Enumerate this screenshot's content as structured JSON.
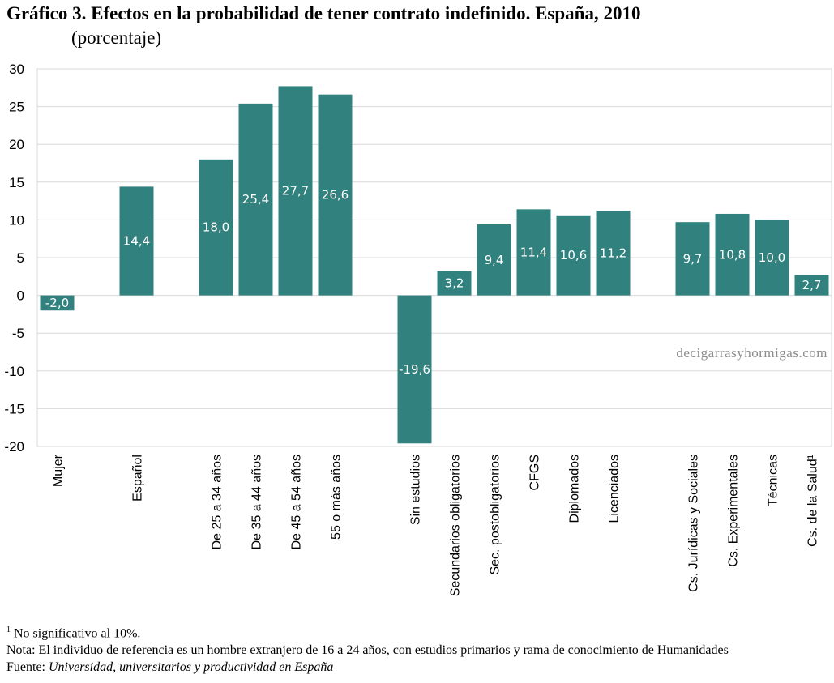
{
  "chart_data": {
    "type": "bar",
    "title": "Gráfico 3. Efectos en la probabilidad de tener contrato indefinido. España, 2010",
    "subtitle": "(porcentaje)",
    "categories": [
      "Mujer",
      "",
      "Español",
      "",
      "De 25 a 34 años",
      "De 35 a 44 años",
      "De 45 a 54 años",
      "55 o más años",
      "",
      "Sin estudios",
      "Secundarios obligatorios",
      "Sec. postobligatorios",
      "CFGS",
      "Diplomados",
      "Licenciados",
      "",
      "Cs. Jurídicas y Sociales",
      "Cs. Experimentales",
      "Técnicas",
      "Cs. de la Salud¹"
    ],
    "values": [
      -2.0,
      null,
      14.4,
      null,
      18.0,
      25.4,
      27.7,
      26.6,
      null,
      -19.6,
      3.2,
      9.4,
      11.4,
      10.6,
      11.2,
      null,
      9.7,
      10.8,
      10.0,
      2.7
    ],
    "data_labels": [
      "-2,0",
      "",
      "14,4",
      "",
      "18,0",
      "25,4",
      "27,7",
      "26,6",
      "",
      "-19,6",
      "3,2",
      "9,4",
      "11,4",
      "10,6",
      "11,2",
      "",
      "9,7",
      "10,8",
      "10,0",
      "2,7"
    ],
    "ylim": [
      -20,
      30
    ],
    "yticks": [
      30,
      25,
      20,
      15,
      10,
      5,
      0,
      -5,
      -10,
      -15,
      -20
    ],
    "grid": true,
    "legend": "none",
    "bar_color": "#31827E",
    "watermark": "decigarrasyhormigas.com"
  },
  "notes": {
    "footnote_mark": "1",
    "footnote": " No significativo al 10%.",
    "nota": "Nota: El individuo de referencia es un hombre extranjero de 16 a 24 años, con estudios primarios y rama de conocimiento de Humanidades",
    "fuente_label": "Fuente: ",
    "fuente_title": "Universidad, universitarios y productividad en España"
  }
}
